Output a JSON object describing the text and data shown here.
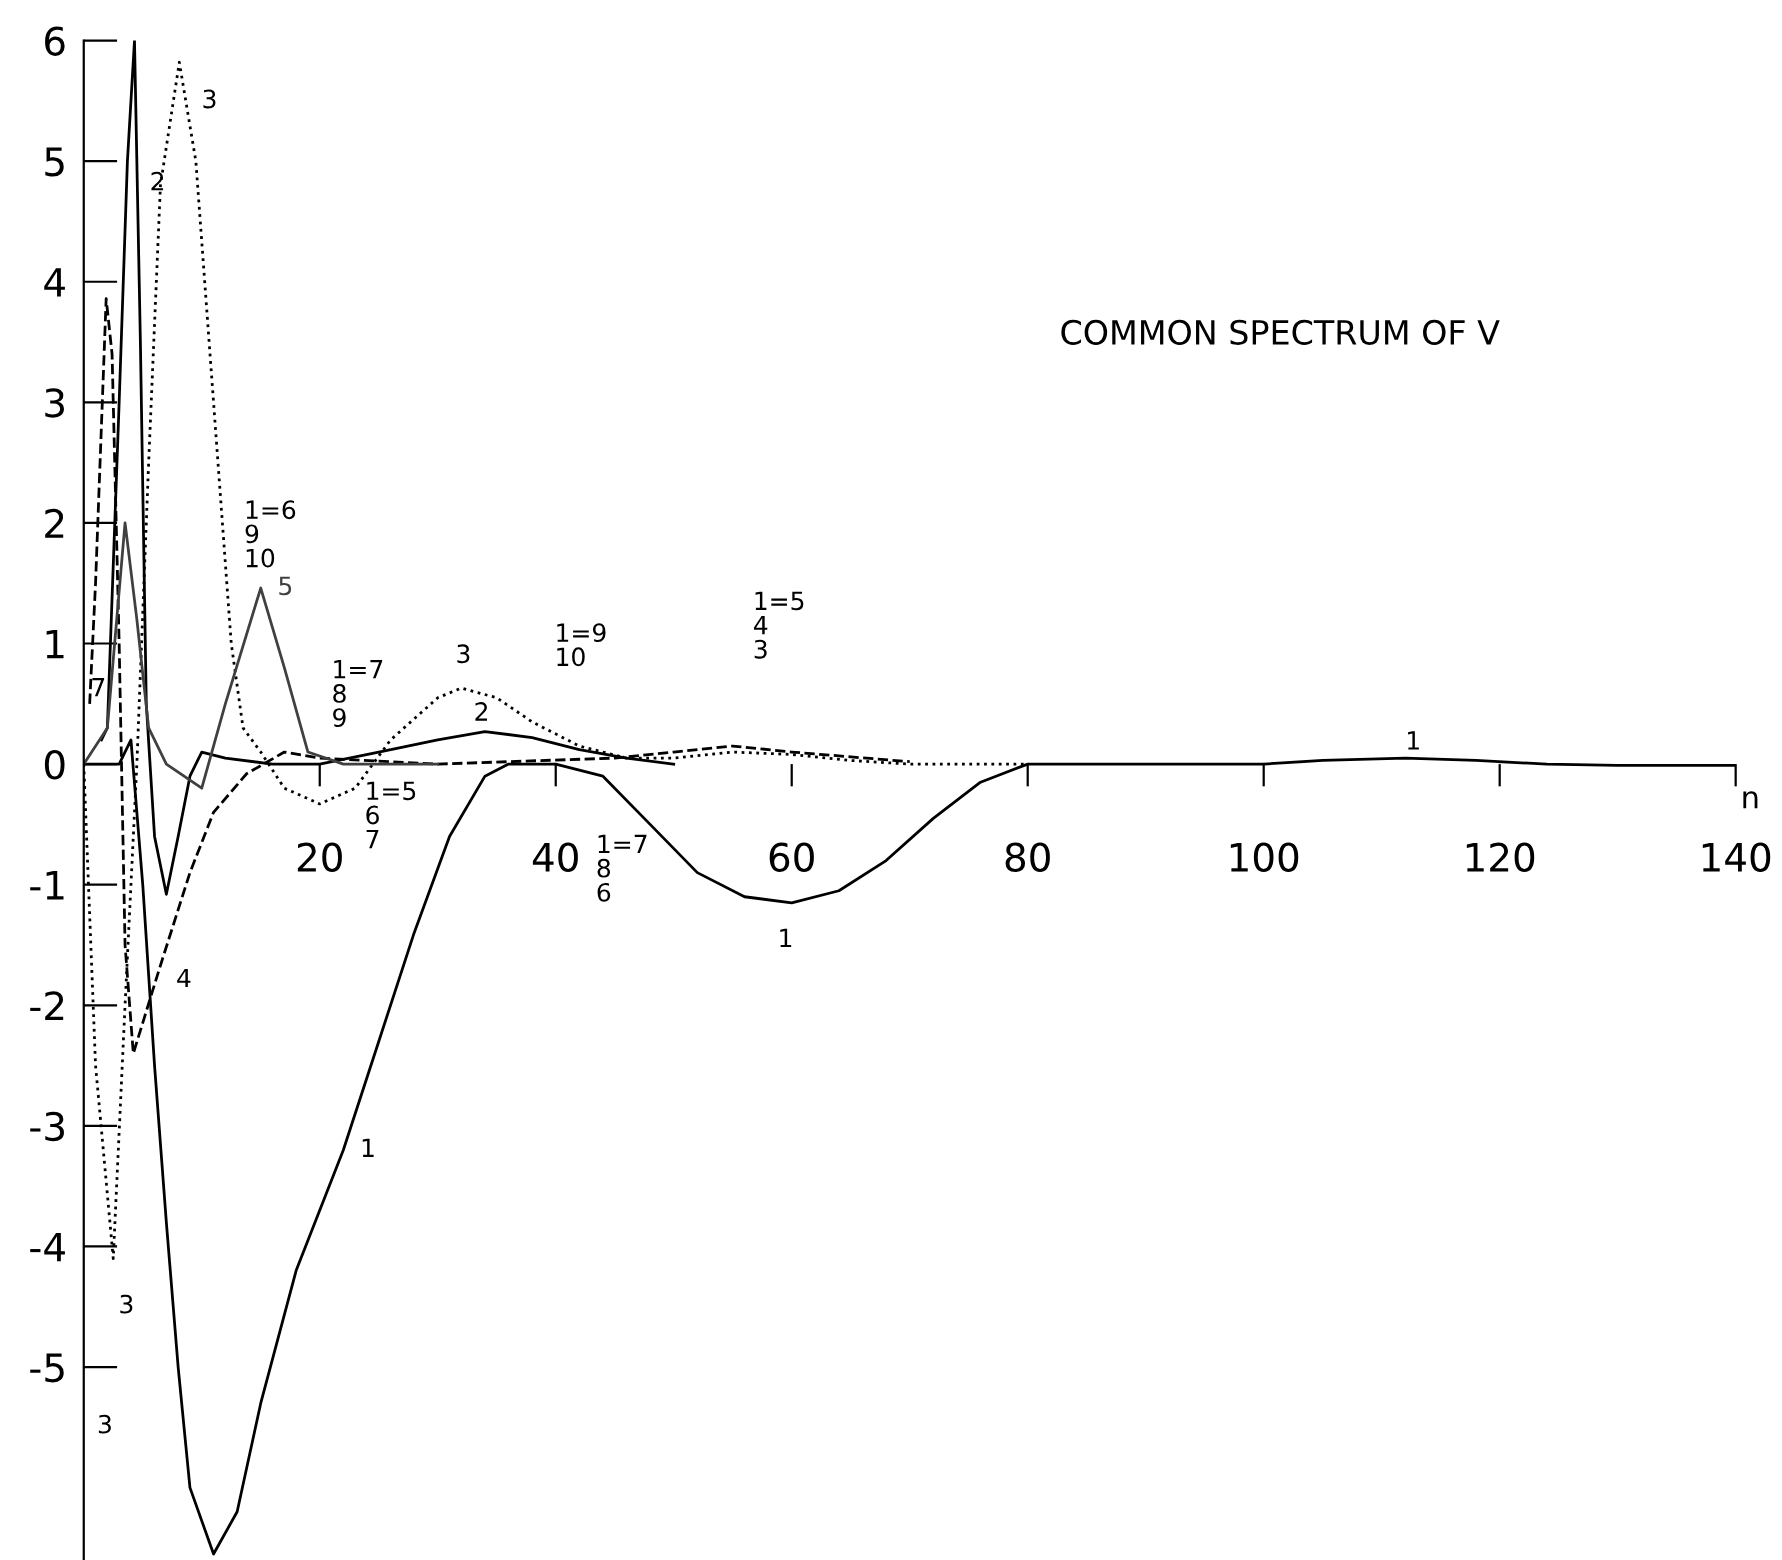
{
  "chart_data": {
    "type": "line",
    "title": "COMMON SPECTRUM OF V",
    "xlabel": "n",
    "xlim": [
      0,
      140
    ],
    "ylim": [
      -6.6,
      6
    ],
    "xticks": [
      20,
      40,
      60,
      80,
      100,
      120,
      140
    ],
    "yticks": [
      -5,
      -4,
      -3,
      -2,
      -1,
      0,
      1,
      2,
      3,
      4,
      5,
      6
    ],
    "grid": false,
    "marker": "none",
    "series": [
      {
        "name": "1",
        "color": "#000000",
        "line_style": "solid",
        "x": [
          0,
          3,
          4,
          5,
          6,
          7,
          8,
          9,
          11,
          13,
          15,
          18,
          22,
          25,
          28,
          31,
          34,
          36,
          40,
          44,
          48,
          52,
          56,
          60,
          64,
          68,
          72,
          76,
          80,
          90,
          100,
          105,
          112,
          118,
          124,
          130,
          140
        ],
        "values": [
          0,
          0,
          0.2,
          -1.0,
          -2.5,
          -3.8,
          -5.0,
          -6.0,
          -6.55,
          -6.2,
          -5.3,
          -4.2,
          -3.2,
          -2.3,
          -1.4,
          -0.6,
          -0.1,
          0,
          0,
          -0.1,
          -0.5,
          -0.9,
          -1.1,
          -1.15,
          -1.05,
          -0.8,
          -0.45,
          -0.15,
          0,
          0,
          0,
          0.03,
          0.05,
          0.03,
          0,
          -0.01,
          -0.01
        ]
      },
      {
        "name": "2",
        "color": "#000000",
        "line_style": "solid",
        "x": [
          1.5,
          2,
          3,
          3.7,
          4.3,
          4.8,
          5.3,
          6,
          7,
          8,
          9,
          10,
          12,
          16,
          20,
          25,
          30,
          34,
          38,
          42,
          46,
          50
        ],
        "values": [
          0.2,
          0.3,
          3,
          5,
          6.0,
          3.5,
          0.5,
          -0.6,
          -1.08,
          -0.6,
          -0.1,
          0.1,
          0.05,
          0,
          0,
          0.1,
          0.2,
          0.27,
          0.22,
          0.12,
          0.05,
          0
        ]
      },
      {
        "name": "3",
        "color": "#000000",
        "line_style": "dotted",
        "x": [
          0,
          1,
          2.5,
          3.5,
          4.5,
          5.5,
          6.5,
          8.1,
          9.5,
          11,
          12.5,
          13.5,
          15,
          17,
          20,
          23,
          26,
          30,
          32,
          35,
          38,
          42,
          46,
          50,
          55,
          60,
          65,
          70,
          80
        ],
        "values": [
          0,
          -2.5,
          -4.1,
          -2,
          0,
          2.5,
          4.8,
          5.82,
          5.0,
          3,
          1.0,
          0.3,
          0.1,
          -0.2,
          -0.33,
          -0.2,
          0.2,
          0.55,
          0.63,
          0.55,
          0.35,
          0.15,
          0.05,
          0.05,
          0.1,
          0.08,
          0.03,
          0,
          0
        ]
      },
      {
        "name": "4",
        "color": "#000000",
        "line_style": "dashed",
        "x": [
          0.5,
          1,
          1.9,
          2.4,
          3,
          3.5,
          4.2,
          6.4,
          9,
          11,
          13.8,
          17,
          20,
          30,
          45,
          50,
          55,
          60,
          70
        ],
        "values": [
          0.5,
          1.5,
          3.86,
          3.4,
          1,
          -1.5,
          -2.4,
          -1.7,
          -0.9,
          -0.4,
          -0.08,
          0.1,
          0.05,
          0,
          0.05,
          0.1,
          0.15,
          0.1,
          0.02
        ]
      },
      {
        "name": "5",
        "color": "#404040",
        "line_style": "solid",
        "x": [
          0,
          2,
          3.5,
          4.5,
          5.5,
          7,
          10,
          12,
          15,
          17,
          19,
          22,
          30
        ],
        "values": [
          0,
          0.3,
          2.0,
          1.2,
          0.3,
          0,
          -0.2,
          0.5,
          1.46,
          0.8,
          0.1,
          0,
          0
        ]
      }
    ],
    "annotations": [
      "7",
      "3",
      "3",
      "3",
      "2",
      "1",
      "1",
      "1=6\n9\n10",
      "1=7\n8\n9",
      "1=5\n6\n7",
      "1=9\n10",
      "1=7\n8\n6",
      "1=5\n4\n3"
    ]
  }
}
